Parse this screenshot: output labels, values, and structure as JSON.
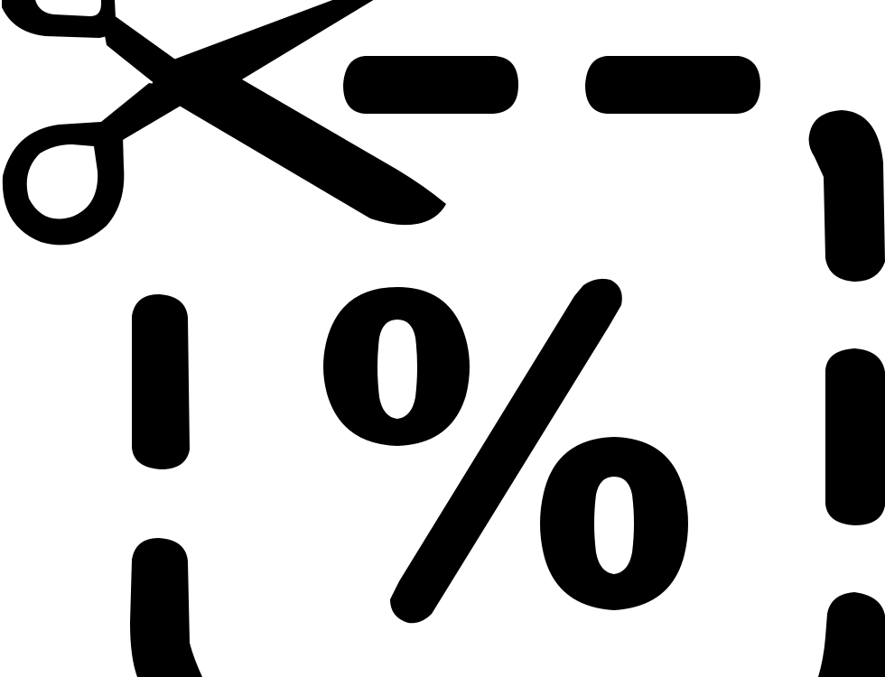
{
  "icon": {
    "name": "coupon-cut-icon",
    "glyph": "%",
    "fg_color": "#000000",
    "bg_color": "#ffffff"
  }
}
